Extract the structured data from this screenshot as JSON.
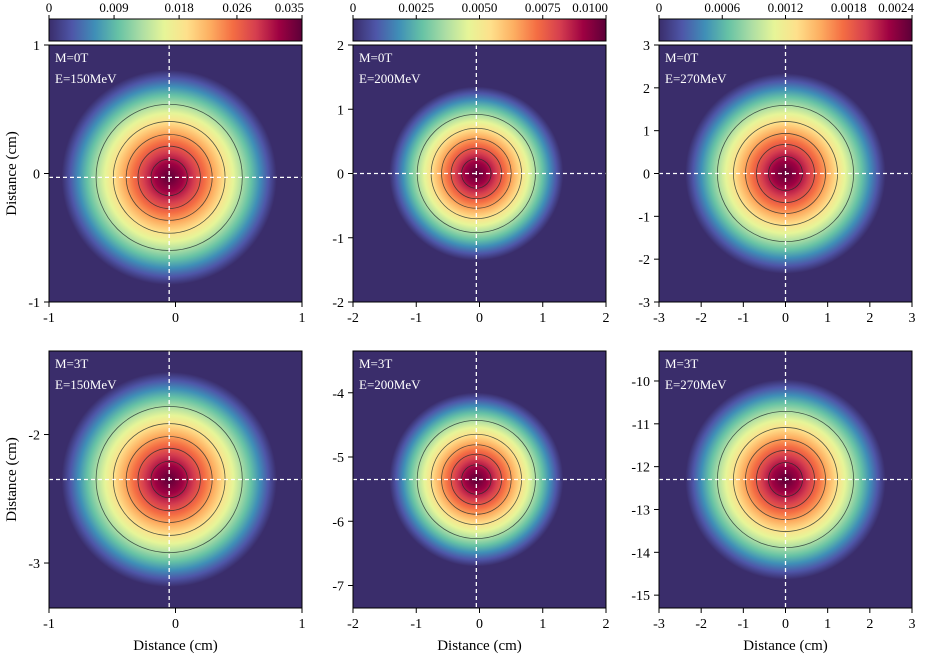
{
  "figure": {
    "type": "heatmap-grid",
    "colormap": [
      "#3a2d6b",
      "#4e56a8",
      "#3f8fb7",
      "#66c2a5",
      "#abdda4",
      "#e6f598",
      "#fee08b",
      "#fdae61",
      "#f46d43",
      "#d53e4f",
      "#9e0142",
      "#5c0038"
    ],
    "contour_color": "#1e2b2b",
    "crosshair_color": "#ffffff"
  },
  "chart_data": [
    {
      "type": "heatmap",
      "panel": "M0-E150",
      "label_M": "M=0T",
      "label_E": "E=150MeV",
      "xlim": [
        -1,
        1
      ],
      "ylim": [
        -1,
        1
      ],
      "xticks": [
        -1,
        0,
        1
      ],
      "xtick_labels": [
        "-1",
        "0",
        "1"
      ],
      "yticks": [
        -1,
        0,
        1
      ],
      "ytick_labels": [
        "-1",
        "0",
        "1"
      ],
      "ylabel": "Distance (cm)",
      "xlabel": "",
      "center": [
        -0.05,
        -0.03
      ],
      "sigma": 0.26,
      "radius_scale": 0.68,
      "colorbar": {
        "min": 0,
        "max": 0.035,
        "ticks": [
          0,
          0.009,
          0.018,
          0.026,
          0.035
        ],
        "tick_labels": [
          "0",
          "0.009",
          "0.018",
          "0.026",
          "0.035"
        ]
      }
    },
    {
      "type": "heatmap",
      "panel": "M0-E200",
      "label_M": "M=0T",
      "label_E": "E=200MeV",
      "xlim": [
        -2,
        2
      ],
      "ylim": [
        -2,
        2
      ],
      "xticks": [
        -2,
        -1,
        0,
        1,
        2
      ],
      "xtick_labels": [
        "-2",
        "-1",
        "0",
        "1",
        "2"
      ],
      "yticks": [
        -2,
        -1,
        0,
        1,
        2
      ],
      "ytick_labels": [
        "-2",
        "-1",
        "0",
        "1",
        "2"
      ],
      "ylabel": "",
      "xlabel": "",
      "center": [
        -0.05,
        0.0
      ],
      "sigma": 0.42,
      "radius_scale": 1.1,
      "colorbar": {
        "min": 0,
        "max": 0.01,
        "ticks": [
          0,
          0.0025,
          0.005,
          0.0075,
          0.01
        ],
        "tick_labels": [
          "0",
          "0.0025",
          "0.0050",
          "0.0075",
          "0.0100"
        ]
      }
    },
    {
      "type": "heatmap",
      "panel": "M0-E270",
      "label_M": "M=0T",
      "label_E": "E=270MeV",
      "xlim": [
        -3,
        3
      ],
      "ylim": [
        -3,
        3
      ],
      "xticks": [
        -3,
        -2,
        -1,
        0,
        1,
        2,
        3
      ],
      "xtick_labels": [
        "-3",
        "-2",
        "-1",
        "0",
        "1",
        "2",
        "3"
      ],
      "yticks": [
        -3,
        -2,
        -1,
        0,
        1,
        2,
        3
      ],
      "ytick_labels": [
        "-3",
        "-2",
        "-1",
        "0",
        "1",
        "2",
        "3"
      ],
      "ylabel": "",
      "xlabel": "",
      "center": [
        0.0,
        0.0
      ],
      "sigma": 0.75,
      "radius_scale": 1.9,
      "colorbar": {
        "min": 0,
        "max": 0.0024,
        "ticks": [
          0,
          0.0006,
          0.0012,
          0.0018,
          0.0024
        ],
        "tick_labels": [
          "0",
          "0.0006",
          "0.0012",
          "0.0018",
          "0.0024"
        ]
      }
    },
    {
      "type": "heatmap",
      "panel": "M3-E150",
      "label_M": "M=3T",
      "label_E": "E=150MeV",
      "xlim": [
        -1,
        1
      ],
      "ylim": [
        -3.35,
        -1.35
      ],
      "xticks": [
        -1,
        0,
        1
      ],
      "xtick_labels": [
        "-1",
        "0",
        "1"
      ],
      "yticks": [
        -3,
        -2
      ],
      "ytick_labels": [
        "-3",
        "-2"
      ],
      "ylabel": "Distance (cm)",
      "xlabel": "Distance (cm)",
      "center": [
        -0.05,
        -2.35
      ],
      "sigma": 0.26,
      "radius_scale": 0.68
    },
    {
      "type": "heatmap",
      "panel": "M3-E200",
      "label_M": "M=3T",
      "label_E": "E=200MeV",
      "xlim": [
        -2,
        2
      ],
      "ylim": [
        -7.35,
        -3.35
      ],
      "xticks": [
        -2,
        -1,
        0,
        1,
        2
      ],
      "xtick_labels": [
        "-2",
        "-1",
        "0",
        "1",
        "2"
      ],
      "yticks": [
        -7,
        -6,
        -5,
        -4
      ],
      "ytick_labels": [
        "-7",
        "-6",
        "-5",
        "-4"
      ],
      "ylabel": "",
      "xlabel": "Distance (cm)",
      "center": [
        -0.05,
        -5.35
      ],
      "sigma": 0.42,
      "radius_scale": 1.1
    },
    {
      "type": "heatmap",
      "panel": "M3-E270",
      "label_M": "M=3T",
      "label_E": "E=270MeV",
      "xlim": [
        -3,
        3
      ],
      "ylim": [
        -15.3,
        -9.3
      ],
      "xticks": [
        -3,
        -2,
        -1,
        0,
        1,
        2,
        3
      ],
      "xtick_labels": [
        "-3",
        "-2",
        "-1",
        "0",
        "1",
        "2",
        "3"
      ],
      "yticks": [
        -15,
        -14,
        -13,
        -12,
        -11,
        -10
      ],
      "ytick_labels": [
        "-15",
        "-14",
        "-13",
        "-12",
        "-11",
        "-10"
      ],
      "ylabel": "",
      "xlabel": "Distance (cm)",
      "center": [
        0.0,
        -12.3
      ],
      "sigma": 0.75,
      "radius_scale": 1.9
    }
  ]
}
